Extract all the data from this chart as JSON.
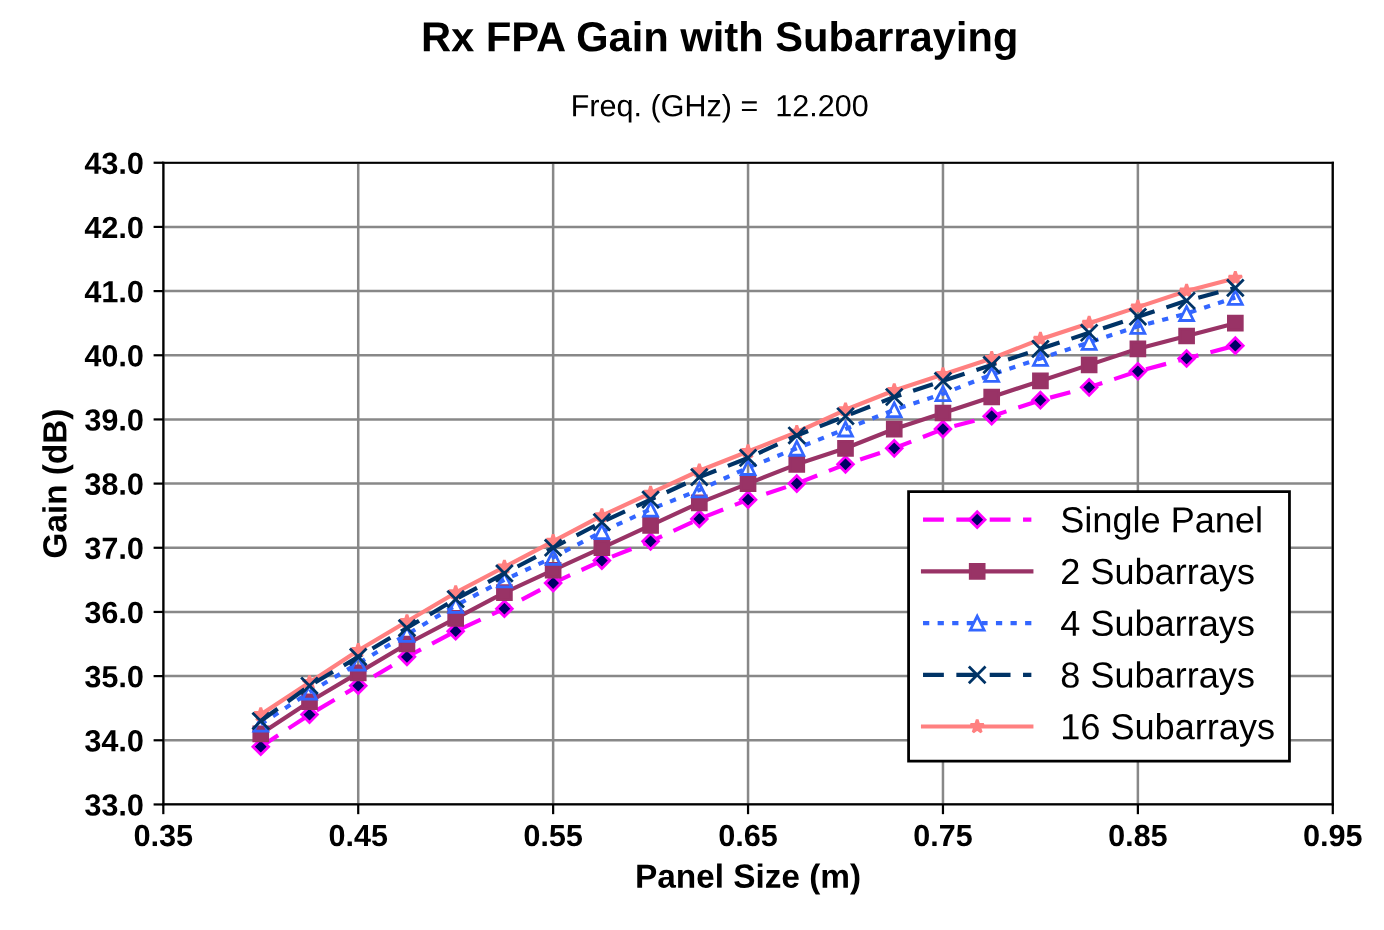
{
  "chart_data": {
    "type": "line",
    "title": "Rx FPA Gain with Subarraying",
    "subtitle": "Freq. (GHz) =  12.200",
    "xlabel": "Panel Size (m)",
    "ylabel": "Gain (dB)",
    "x": [
      0.4,
      0.425,
      0.45,
      0.475,
      0.5,
      0.525,
      0.55,
      0.575,
      0.6,
      0.625,
      0.65,
      0.675,
      0.7,
      0.725,
      0.75,
      0.775,
      0.8,
      0.825,
      0.85,
      0.875,
      0.9
    ],
    "series": [
      {
        "name": "Single Panel",
        "color": "#ff00ff",
        "marker": "diamond",
        "line_style": "dashed",
        "values": [
          33.9,
          34.4,
          34.85,
          35.3,
          35.7,
          36.05,
          36.45,
          36.8,
          37.1,
          37.45,
          37.75,
          38.0,
          38.3,
          38.55,
          38.85,
          39.05,
          39.3,
          39.5,
          39.75,
          39.95,
          40.15
        ]
      },
      {
        "name": "2 Subarrays",
        "color": "#993366",
        "marker": "square",
        "line_style": "solid",
        "values": [
          34.1,
          34.6,
          35.05,
          35.5,
          35.9,
          36.3,
          36.65,
          37.0,
          37.35,
          37.7,
          38.0,
          38.3,
          38.55,
          38.85,
          39.1,
          39.35,
          39.6,
          39.85,
          40.1,
          40.3,
          40.5
        ]
      },
      {
        "name": "4 Subarrays",
        "color": "#3366ff",
        "marker": "triangle",
        "line_style": "dotted",
        "values": [
          34.25,
          34.75,
          35.2,
          35.65,
          36.1,
          36.5,
          36.85,
          37.25,
          37.6,
          37.9,
          38.25,
          38.55,
          38.85,
          39.15,
          39.4,
          39.7,
          39.95,
          40.2,
          40.45,
          40.65,
          40.9
        ]
      },
      {
        "name": "8 Subarrays",
        "color": "#003366",
        "marker": "cross",
        "line_style": "dashed",
        "values": [
          34.3,
          34.85,
          35.3,
          35.75,
          36.2,
          36.6,
          37.0,
          37.4,
          37.75,
          38.1,
          38.4,
          38.75,
          39.05,
          39.35,
          39.6,
          39.85,
          40.1,
          40.35,
          40.6,
          40.85,
          41.05
        ]
      },
      {
        "name": "16 Subarrays",
        "color": "#ff8080",
        "marker": "star",
        "line_style": "solid",
        "values": [
          34.4,
          34.9,
          35.4,
          35.85,
          36.3,
          36.7,
          37.1,
          37.5,
          37.85,
          38.2,
          38.5,
          38.8,
          39.15,
          39.45,
          39.7,
          39.95,
          40.25,
          40.5,
          40.75,
          41.0,
          41.2
        ]
      }
    ],
    "xlim": [
      0.35,
      0.95
    ],
    "xticks": [
      0.35,
      0.45,
      0.55,
      0.65,
      0.75,
      0.85,
      0.95
    ],
    "ylim": [
      33.0,
      43.0
    ],
    "yticks": [
      {
        "value": 33,
        "label": "33.0"
      },
      {
        "value": 34,
        "label": "34.0"
      },
      {
        "value": 35,
        "label": "35.0"
      },
      {
        "value": 36,
        "label": "36.0"
      },
      {
        "value": 37,
        "label": "37.0"
      },
      {
        "value": 38,
        "label": "38.0"
      },
      {
        "value": 39,
        "label": "39.0"
      },
      {
        "value": 40,
        "label": "40.0"
      },
      {
        "value": 41,
        "label": "41.0"
      },
      {
        "value": 42,
        "label": "42.0"
      },
      {
        "value": 43,
        "label": "43.0"
      }
    ],
    "grid": true,
    "legend": "bottom right"
  }
}
